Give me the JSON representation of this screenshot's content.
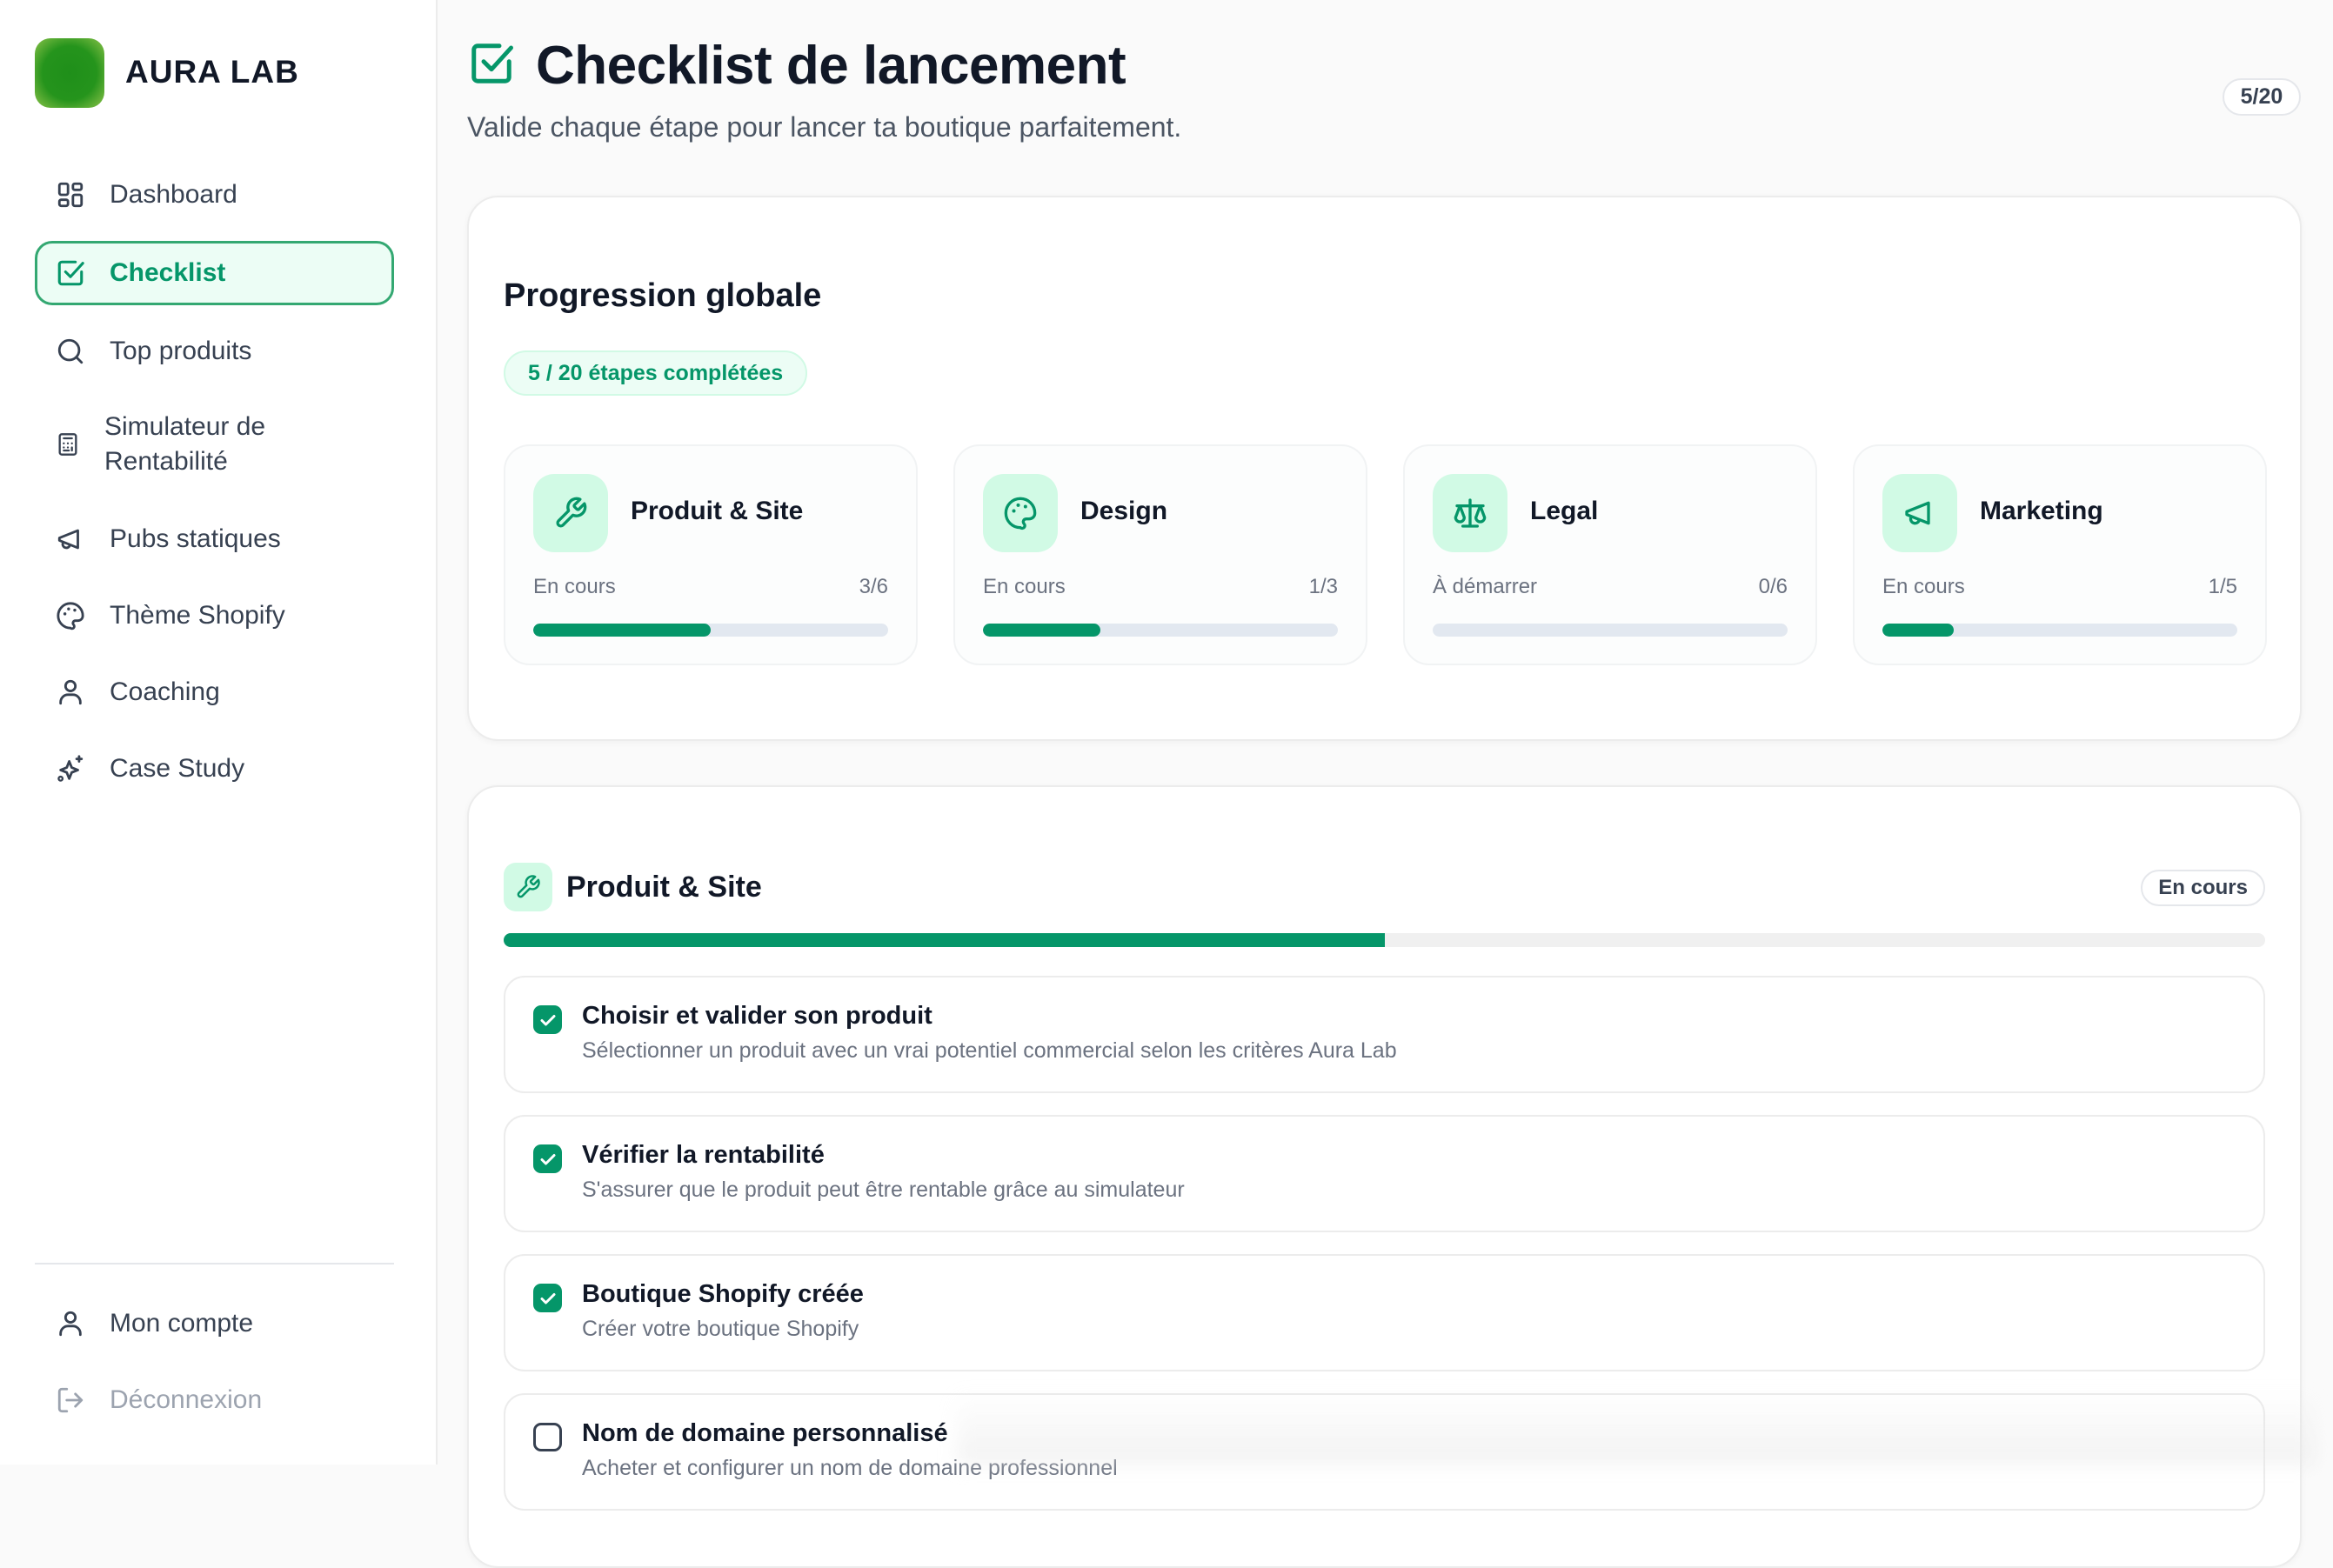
{
  "app": {
    "brand": "AURA LAB"
  },
  "colors": {
    "accent": "#059669",
    "accent_light": "#d1fae5",
    "active_bg": "#ecfdf5"
  },
  "sidebar": {
    "items": [
      {
        "label": "Dashboard",
        "icon": "dashboard-icon"
      },
      {
        "label": "Checklist",
        "icon": "checkbox-icon",
        "active": true
      },
      {
        "label": "Top produits",
        "icon": "search-icon"
      },
      {
        "label": "Simulateur de Rentabilité",
        "icon": "calculator-icon"
      },
      {
        "label": "Pubs statiques",
        "icon": "megaphone-icon"
      },
      {
        "label": "Thème Shopify",
        "icon": "palette-icon"
      },
      {
        "label": "Coaching",
        "icon": "user-icon"
      },
      {
        "label": "Case Study",
        "icon": "sparkles-icon"
      }
    ],
    "footer": [
      {
        "label": "Mon compte",
        "icon": "user-icon"
      },
      {
        "label": "Déconnexion",
        "icon": "logout-icon"
      }
    ]
  },
  "header": {
    "title": "Checklist de lancement",
    "subtitle": "Valide chaque étape pour lancer ta boutique parfaitement.",
    "count": "5/20"
  },
  "progress": {
    "title": "Progression globale",
    "summary": "5 / 20 étapes complétées",
    "categories": [
      {
        "name": "Produit & Site",
        "status": "En cours",
        "count": "3/6",
        "percent": 50,
        "icon": "wrench-icon"
      },
      {
        "name": "Design",
        "status": "En cours",
        "count": "1/3",
        "percent": 33,
        "icon": "palette-icon"
      },
      {
        "name": "Legal",
        "status": "À démarrer",
        "count": "0/6",
        "percent": 0,
        "icon": "scale-icon"
      },
      {
        "name": "Marketing",
        "status": "En cours",
        "count": "1/5",
        "percent": 20,
        "icon": "megaphone-icon"
      }
    ]
  },
  "section": {
    "title": "Produit & Site",
    "status": "En cours",
    "percent": 50,
    "items": [
      {
        "title": "Choisir et valider son produit",
        "desc": "Sélectionner un produit avec un vrai potentiel commercial selon les critères Aura Lab",
        "checked": true
      },
      {
        "title": "Vérifier la rentabilité",
        "desc": "S'assurer que le produit peut être rentable grâce au simulateur",
        "checked": true
      },
      {
        "title": "Boutique Shopify créée",
        "desc": "Créer votre boutique Shopify",
        "checked": true
      },
      {
        "title": "Nom de domaine personnalisé",
        "desc": "Acheter et configurer un nom de domaine professionnel",
        "checked": false
      }
    ]
  }
}
